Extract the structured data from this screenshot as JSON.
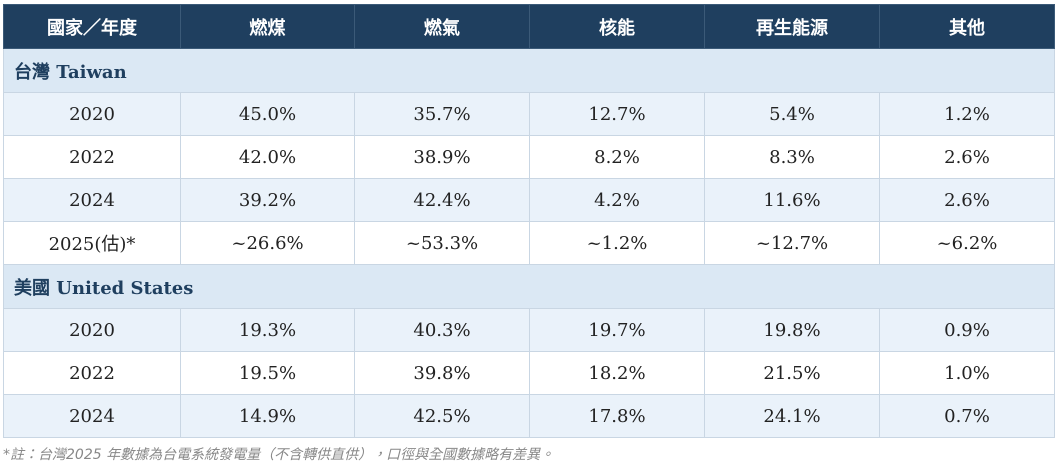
{
  "table": {
    "header": [
      "國家／年度",
      "燃煤",
      "燃氣",
      "核能",
      "再生能源",
      "其他"
    ],
    "groups": [
      {
        "name": "台灣 Taiwan",
        "rows": [
          [
            "2020",
            "45.0%",
            "35.7%",
            "12.7%",
            "5.4%",
            "1.2%"
          ],
          [
            "2022",
            "42.0%",
            "38.9%",
            "8.2%",
            "8.3%",
            "2.6%"
          ],
          [
            "2024",
            "39.2%",
            "42.4%",
            "4.2%",
            "11.6%",
            "2.6%"
          ],
          [
            "2025(估)*",
            "~26.6%",
            "~53.3%",
            "~1.2%",
            "~12.7%",
            "~6.2%"
          ]
        ]
      },
      {
        "name": "美國 United States",
        "rows": [
          [
            "2020",
            "19.3%",
            "40.3%",
            "19.7%",
            "19.8%",
            "0.9%"
          ],
          [
            "2022",
            "19.5%",
            "39.8%",
            "18.2%",
            "21.5%",
            "1.0%"
          ],
          [
            "2024",
            "14.9%",
            "42.5%",
            "17.8%",
            "24.1%",
            "0.7%"
          ]
        ]
      }
    ]
  },
  "footnote": "*註：台灣2025 年數據為台電系統發電量（不含轉供直供），口徑與全國數據略有差異。"
}
